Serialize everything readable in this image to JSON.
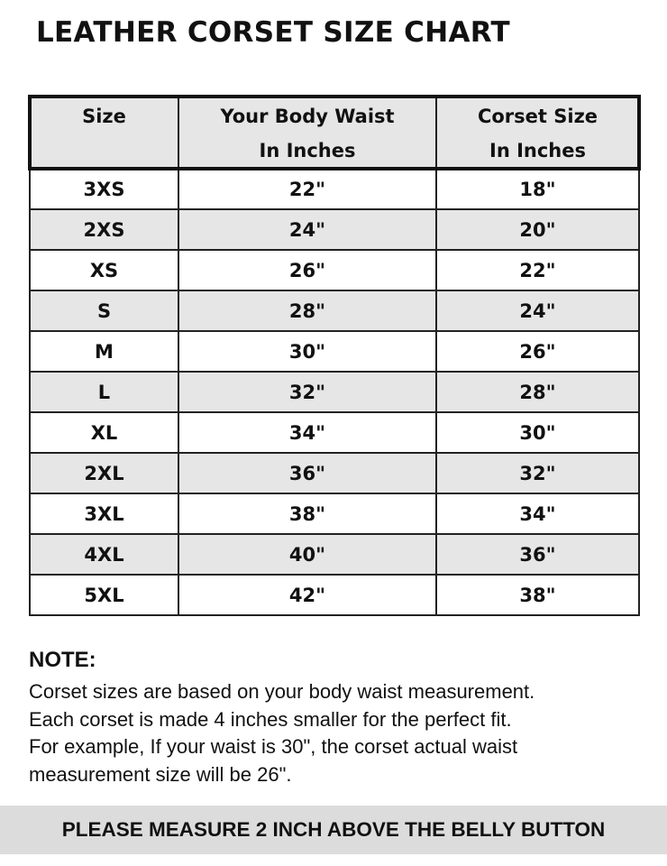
{
  "title": "LEATHER CORSET SIZE CHART",
  "table": {
    "header": [
      [
        "Size"
      ],
      [
        "Your Body Waist",
        "In Inches"
      ],
      [
        "Corset Size",
        "In Inches"
      ]
    ],
    "rows": [
      [
        "3XS",
        "22\"",
        "18\""
      ],
      [
        "2XS",
        "24\"",
        "20\""
      ],
      [
        "XS",
        "26\"",
        "22\""
      ],
      [
        "S",
        "28\"",
        "24\""
      ],
      [
        "M",
        "30\"",
        "26\""
      ],
      [
        "L",
        "32\"",
        "28\""
      ],
      [
        "XL",
        "34\"",
        "30\""
      ],
      [
        "2XL",
        "36\"",
        "32\""
      ],
      [
        "3XL",
        "38\"",
        "34\""
      ],
      [
        "4XL",
        "40\"",
        "36\""
      ],
      [
        "5XL",
        "42\"",
        "38\""
      ]
    ]
  },
  "note": {
    "heading": "NOTE:",
    "lines": [
      "Corset sizes are based on your body waist measurement.",
      "Each corset is made 4 inches smaller for the perfect fit.",
      "For example, If your waist is 30\", the corset actual waist",
      "measurement size will be 26\"."
    ]
  },
  "footer": "PLEASE MEASURE 2 INCH ABOVE THE BELLY BUTTON"
}
